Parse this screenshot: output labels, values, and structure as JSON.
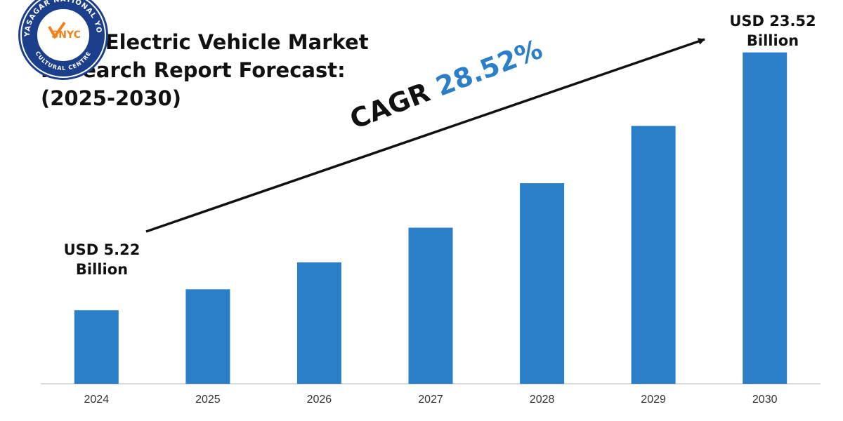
{
  "chart_data": {
    "type": "bar",
    "title_lines": [
      "India Electric Vehicle Market",
      "Research Report Forecast:",
      "(2025-2030)"
    ],
    "categories": [
      "2024",
      "2025",
      "2026",
      "2027",
      "2028",
      "2029",
      "2030"
    ],
    "values": [
      5.22,
      6.71,
      8.62,
      11.08,
      14.24,
      18.3,
      23.52
    ],
    "unit": "USD Billion",
    "ylim": [
      0,
      25
    ],
    "grid": false,
    "bar_color": "#2a7fc8",
    "annotations": {
      "start_value": "USD 5.22",
      "start_unit": "Billion",
      "end_value": "USD 23.52",
      "end_unit": "Billion",
      "cagr_label": "CAGR",
      "cagr_value": "28.52%"
    }
  },
  "logo": {
    "name": "SNYC",
    "ring_text_top": "VIDYASAGAR NATIONAL YOUTH",
    "ring_text_bottom": "CULTURAL CENTRE"
  },
  "colors": {
    "accent": "#2a7fc8",
    "text": "#111111",
    "axis_line": "#d0d0d0",
    "logo_navy": "#1c3f8c",
    "logo_orange": "#f0831e"
  }
}
